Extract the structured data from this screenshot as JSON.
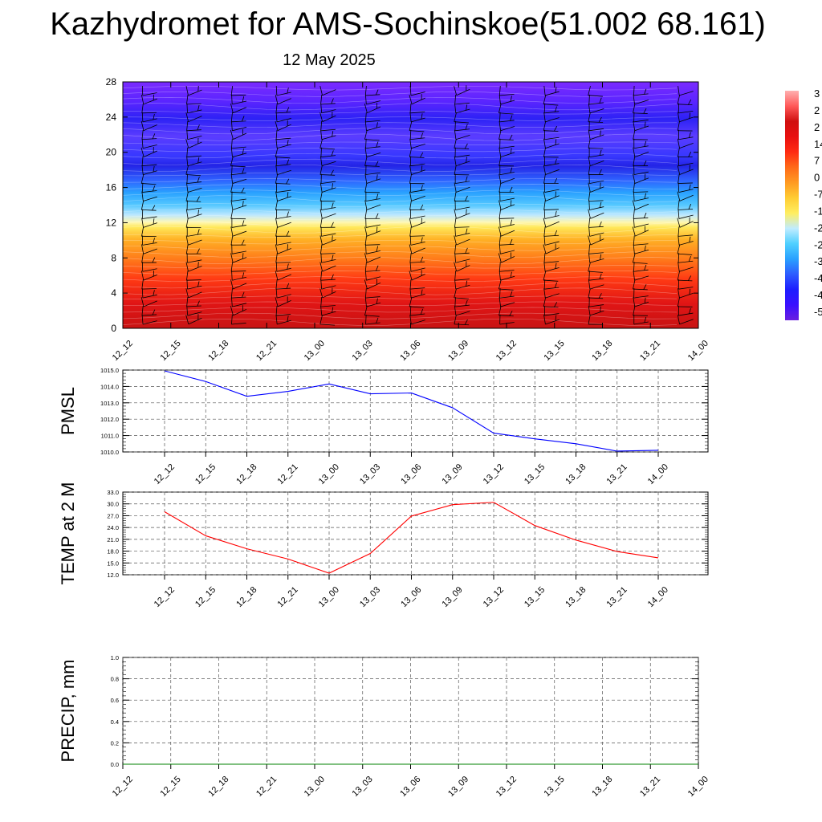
{
  "title": "Kazhydromet for AMS-Sochinskoe(51.002 68.161)",
  "subtitle": "12 May 2025",
  "colors": {
    "pmsl_line": "#0000ff",
    "temp_line": "#ff0000",
    "precip_line": "#008000",
    "grid": "#555555",
    "colorbar": [
      "#6a1fe0",
      "#3a10ff",
      "#1d1dff",
      "#2d5bff",
      "#2aa0ff",
      "#4fd0ff",
      "#c0ecff",
      "#ffee60",
      "#ffcc33",
      "#ff9a22",
      "#ff6a18",
      "#ff2b12",
      "#e81010",
      "#d01010",
      "#ff5a5a",
      "#ffb0b0"
    ]
  },
  "chart_data": [
    {
      "type": "heatmap",
      "name": "",
      "x_ticks": [
        "12_12",
        "12_15",
        "12_18",
        "12_21",
        "13_00",
        "13_03",
        "13_06",
        "13_09",
        "13_12",
        "13_15",
        "13_18",
        "13_21",
        "14_00"
      ],
      "y_ticks": [
        "0",
        "4",
        "8",
        "12",
        "16",
        "20",
        "24",
        "28"
      ],
      "ylim": [
        0,
        28
      ],
      "colorbar_labels": [
        "3",
        "2",
        "2",
        "14",
        "7",
        "0",
        "-7",
        "-1",
        "-2",
        "-2",
        "-3",
        "-4",
        "-4",
        "-5"
      ],
      "levels_temperature_profile": [
        {
          "height": 0,
          "temp": 28
        },
        {
          "height": 4,
          "temp": 22
        },
        {
          "height": 8,
          "temp": 12
        },
        {
          "height": 12,
          "temp": -3
        },
        {
          "height": 14,
          "temp": -18
        },
        {
          "height": 16,
          "temp": -30
        },
        {
          "height": 18,
          "temp": -50
        },
        {
          "height": 20,
          "temp": -45
        },
        {
          "height": 24,
          "temp": -52
        },
        {
          "height": 28,
          "temp": -58
        }
      ],
      "wind_barbs": true
    },
    {
      "type": "line",
      "ylabel": "PMSL",
      "x_ticks": [
        "12_12",
        "12_15",
        "12_18",
        "12_21",
        "13_00",
        "13_03",
        "13_06",
        "13_09",
        "13_12",
        "13_15",
        "13_18",
        "13_21",
        "14_00"
      ],
      "y_ticks": [
        "1010.0",
        "1011.0",
        "1012.0",
        "1013.0",
        "1014.0",
        "1015.0"
      ],
      "ylim": [
        1010.0,
        1015.0
      ],
      "series": [
        {
          "values": [
            1014.95,
            1014.3,
            1013.4,
            1013.7,
            1014.15,
            1013.55,
            1013.6,
            1012.7,
            1011.15,
            1010.8,
            1010.5,
            1010.05,
            1010.1
          ]
        }
      ],
      "grid": true
    },
    {
      "type": "line",
      "ylabel": "TEMP at 2 M",
      "x_ticks": [
        "12_12",
        "12_15",
        "12_18",
        "12_21",
        "13_00",
        "13_03",
        "13_06",
        "13_09",
        "13_12",
        "13_15",
        "13_18",
        "13_21",
        "14_00"
      ],
      "y_ticks": [
        "12.0",
        "15.0",
        "18.0",
        "21.0",
        "24.0",
        "27.0",
        "30.0",
        "33.0"
      ],
      "ylim": [
        12.0,
        33.0
      ],
      "series": [
        {
          "values": [
            28.0,
            21.9,
            18.6,
            16.0,
            12.4,
            17.4,
            26.9,
            29.8,
            30.4,
            24.5,
            20.8,
            17.9,
            16.3
          ]
        }
      ],
      "grid": true
    },
    {
      "type": "line",
      "ylabel": "PRECIP, mm",
      "x_ticks": [
        "12_12",
        "12_15",
        "12_18",
        "12_21",
        "13_00",
        "13_03",
        "13_06",
        "13_09",
        "13_12",
        "13_15",
        "13_18",
        "13_21",
        "14_00"
      ],
      "y_ticks": [
        "0.0",
        "0.2",
        "0.4",
        "0.6",
        "0.8",
        "1.0"
      ],
      "ylim": [
        0.0,
        1.0
      ],
      "series": [
        {
          "values": [
            0,
            0,
            0,
            0,
            0,
            0,
            0,
            0,
            0,
            0,
            0,
            0,
            0
          ]
        }
      ],
      "grid": true
    }
  ]
}
